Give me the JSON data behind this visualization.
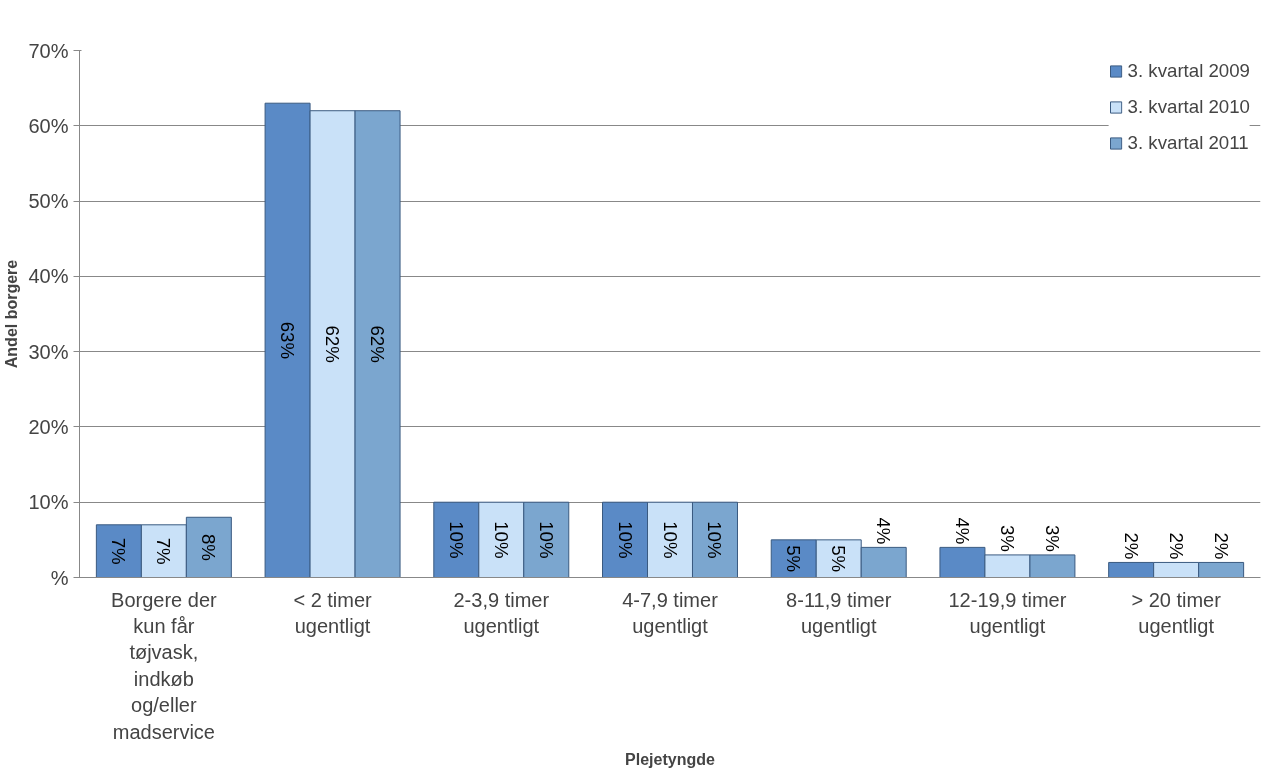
{
  "chart_data": {
    "type": "bar",
    "xlabel": "Plejetyngde",
    "ylabel": "Andel borgere",
    "categories": [
      "Borgere der kun får tøjvask, indkøb og/eller madservice",
      "< 2 timer ugentligt",
      "2-3,9 timer ugentligt",
      "4-7,9 timer ugentligt",
      "8-11,9 timer ugentligt",
      "12-19,9 timer ugentligt",
      "> 20 timer ugentligt"
    ],
    "series": [
      {
        "name": "3. kvartal 2009",
        "color": "#5a8ac6",
        "values": [
          7,
          63,
          10,
          10,
          5,
          4,
          2
        ],
        "value_labels": [
          "7%",
          "63%",
          "10%",
          "10%",
          "5%",
          "4%",
          "2%"
        ]
      },
      {
        "name": "3. kvartal 2010",
        "color": "#c9e1f8",
        "values": [
          7,
          62,
          10,
          10,
          5,
          3,
          2
        ],
        "value_labels": [
          "7%",
          "62%",
          "10%",
          "10%",
          "5%",
          "3%",
          "2%"
        ]
      },
      {
        "name": "3. kvartal 2011",
        "color": "#7ba6cf",
        "values": [
          8,
          62,
          10,
          10,
          4,
          3,
          2
        ],
        "value_labels": [
          "8%",
          "62%",
          "10%",
          "10%",
          "4%",
          "3%",
          "2%"
        ]
      }
    ],
    "ylim": [
      0,
      70
    ],
    "yticks": [
      {
        "value": 0,
        "label": "%"
      },
      {
        "value": 10,
        "label": "10%"
      },
      {
        "value": 20,
        "label": "20%"
      },
      {
        "value": 30,
        "label": "30%"
      },
      {
        "value": 40,
        "label": "40%"
      },
      {
        "value": 50,
        "label": "50%"
      },
      {
        "value": 60,
        "label": "60%"
      },
      {
        "value": 70,
        "label": "70%"
      }
    ],
    "grid": "y",
    "legend": "top right"
  }
}
